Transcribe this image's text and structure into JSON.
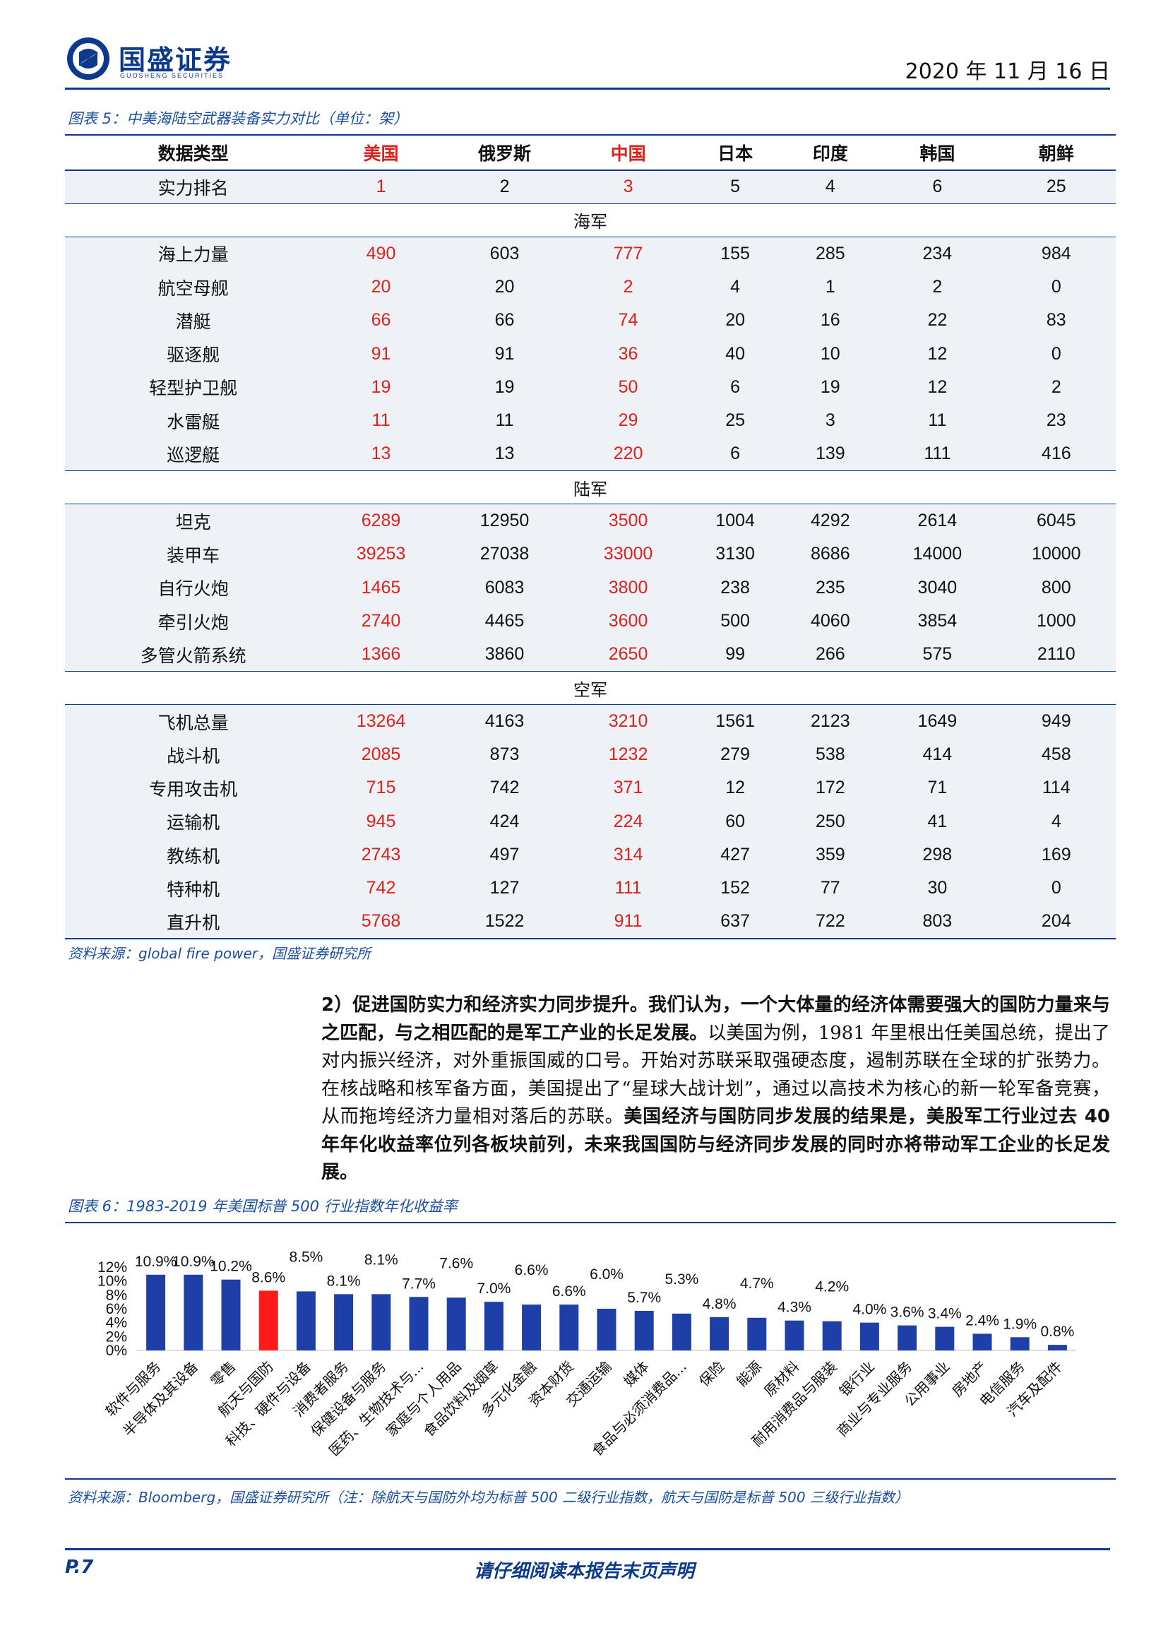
{
  "header": {
    "brand_name": "国盛证券",
    "brand_en": "GUOSHENG SECURITIES",
    "date": "2020 年 11 月 16 日"
  },
  "table5": {
    "caption": "图表 5：中美海陆空武器装备实力对比（单位：架）",
    "columns": [
      "数据类型",
      "美国",
      "俄罗斯",
      "中国",
      "日本",
      "印度",
      "韩国",
      "朝鲜"
    ],
    "highlight_color": "#e0201b",
    "rank_row": {
      "label": "实力排名",
      "values": [
        "1",
        "2",
        "3",
        "5",
        "4",
        "6",
        "25"
      ]
    },
    "sections": [
      {
        "title": "海军",
        "rows": [
          {
            "label": "海上力量",
            "values": [
              "490",
              "603",
              "777",
              "155",
              "285",
              "234",
              "984"
            ]
          },
          {
            "label": "航空母舰",
            "values": [
              "20",
              "20",
              "2",
              "4",
              "1",
              "2",
              "0"
            ]
          },
          {
            "label": "潜艇",
            "values": [
              "66",
              "66",
              "74",
              "20",
              "16",
              "22",
              "83"
            ]
          },
          {
            "label": "驱逐舰",
            "values": [
              "91",
              "91",
              "36",
              "40",
              "10",
              "12",
              "0"
            ]
          },
          {
            "label": "轻型护卫舰",
            "values": [
              "19",
              "19",
              "50",
              "6",
              "19",
              "12",
              "2"
            ]
          },
          {
            "label": "水雷艇",
            "values": [
              "11",
              "11",
              "29",
              "25",
              "3",
              "11",
              "23"
            ]
          },
          {
            "label": "巡逻艇",
            "values": [
              "13",
              "13",
              "220",
              "6",
              "139",
              "111",
              "416"
            ]
          }
        ]
      },
      {
        "title": "陆军",
        "rows": [
          {
            "label": "坦克",
            "values": [
              "6289",
              "12950",
              "3500",
              "1004",
              "4292",
              "2614",
              "6045"
            ]
          },
          {
            "label": "装甲车",
            "values": [
              "39253",
              "27038",
              "33000",
              "3130",
              "8686",
              "14000",
              "10000"
            ]
          },
          {
            "label": "自行火炮",
            "values": [
              "1465",
              "6083",
              "3800",
              "238",
              "235",
              "3040",
              "800"
            ]
          },
          {
            "label": "牵引火炮",
            "values": [
              "2740",
              "4465",
              "3600",
              "500",
              "4060",
              "3854",
              "1000"
            ]
          },
          {
            "label": "多管火箭系统",
            "values": [
              "1366",
              "3860",
              "2650",
              "99",
              "266",
              "575",
              "2110"
            ]
          }
        ]
      },
      {
        "title": "空军",
        "rows": [
          {
            "label": "飞机总量",
            "values": [
              "13264",
              "4163",
              "3210",
              "1561",
              "2123",
              "1649",
              "949"
            ]
          },
          {
            "label": "战斗机",
            "values": [
              "2085",
              "873",
              "1232",
              "279",
              "538",
              "414",
              "458"
            ]
          },
          {
            "label": "专用攻击机",
            "values": [
              "715",
              "742",
              "371",
              "12",
              "172",
              "71",
              "114"
            ]
          },
          {
            "label": "运输机",
            "values": [
              "945",
              "424",
              "224",
              "60",
              "250",
              "41",
              "4"
            ]
          },
          {
            "label": "教练机",
            "values": [
              "2743",
              "497",
              "314",
              "427",
              "359",
              "298",
              "169"
            ]
          },
          {
            "label": "特种机",
            "values": [
              "742",
              "127",
              "111",
              "152",
              "77",
              "30",
              "0"
            ]
          },
          {
            "label": "直升机",
            "values": [
              "5768",
              "1522",
              "911",
              "637",
              "722",
              "803",
              "204"
            ]
          }
        ]
      }
    ],
    "source": "资料来源：global fire power，国盛证券研究所"
  },
  "paragraph": {
    "lead_bold": "2）促进国防实力和经济实力同步提升。我们认为，一个大体量的经济体需要强大的国防力量来与之匹配，与之相匹配的是军工产业的长足发展。",
    "body": "以美国为例，1981 年里根出任美国总统，提出了对内振兴经济，对外重振国威的口号。开始对苏联采取强硬态度，遏制苏联在全球的扩张势力。在核战略和核军备方面，美国提出了“星球大战计划”，通过以高技术为核心的新一轮军备竞赛，从而拖垮经济力量相对落后的苏联。",
    "tail_bold": "美国经济与国防同步发展的结果是，美股军工行业过去 40 年年化收益率位列各板块前列，未来我国国防与经济同步发展的同时亦将带动军工企业的长足发展。"
  },
  "chart6": {
    "caption": "图表 6：1983-2019 年美国标普 500 行业指数年化收益率",
    "source": "资料来源：Bloomberg，国盛证券研究所（注：除航天与国防外均为标普 500 二级行业指数，航天与国防是标普 500 三级行业指数）"
  },
  "chart_data": {
    "type": "bar",
    "categories": [
      "软件与服务",
      "半导体及其设备",
      "零售",
      "航天与国防",
      "科技、硬件与设备",
      "消费者服务",
      "保健设备与服务",
      "医药、生物技术与...",
      "家庭与个人用品",
      "食品饮料及烟草",
      "多元化金融",
      "资本财货",
      "交通运输",
      "媒体",
      "食品与必须消费品...",
      "保险",
      "能源",
      "原材料",
      "耐用消费品与服装",
      "银行业",
      "商业与专业服务",
      "公用事业",
      "房地产",
      "电信服务",
      "汽车及配件"
    ],
    "values": [
      10.9,
      10.9,
      10.2,
      8.6,
      8.5,
      8.1,
      8.1,
      7.7,
      7.6,
      7.0,
      6.6,
      6.6,
      6.0,
      5.7,
      5.3,
      4.8,
      4.7,
      4.3,
      4.2,
      4.0,
      3.6,
      3.4,
      2.4,
      1.9,
      0.8
    ],
    "data_labels": [
      "10.9%",
      "10.9%",
      "10.2%",
      "8.6%",
      "8.5%",
      "8.1%",
      "8.1%",
      "7.7%",
      "7.6%",
      "7.0%",
      "6.6%",
      "6.6%",
      "6.0%",
      "5.7%",
      "5.3%",
      "4.8%",
      "4.7%",
      "4.3%",
      "4.2%",
      "4.0%",
      "3.6%",
      "3.4%",
      "2.4%",
      "1.9%",
      "0.8%"
    ],
    "highlight_index": 3,
    "bar_color": "#1f3fa8",
    "highlight_color": "#ff1a1a",
    "ylim": [
      0,
      12
    ],
    "yticks": [
      "0%",
      "2%",
      "4%",
      "6%",
      "8%",
      "10%",
      "12%"
    ],
    "grid": false,
    "legend": "none",
    "title": "",
    "xlabel": "",
    "ylabel": ""
  },
  "footer": {
    "page": "P.7",
    "disclaimer": "请仔细阅读本报告末页声明"
  }
}
